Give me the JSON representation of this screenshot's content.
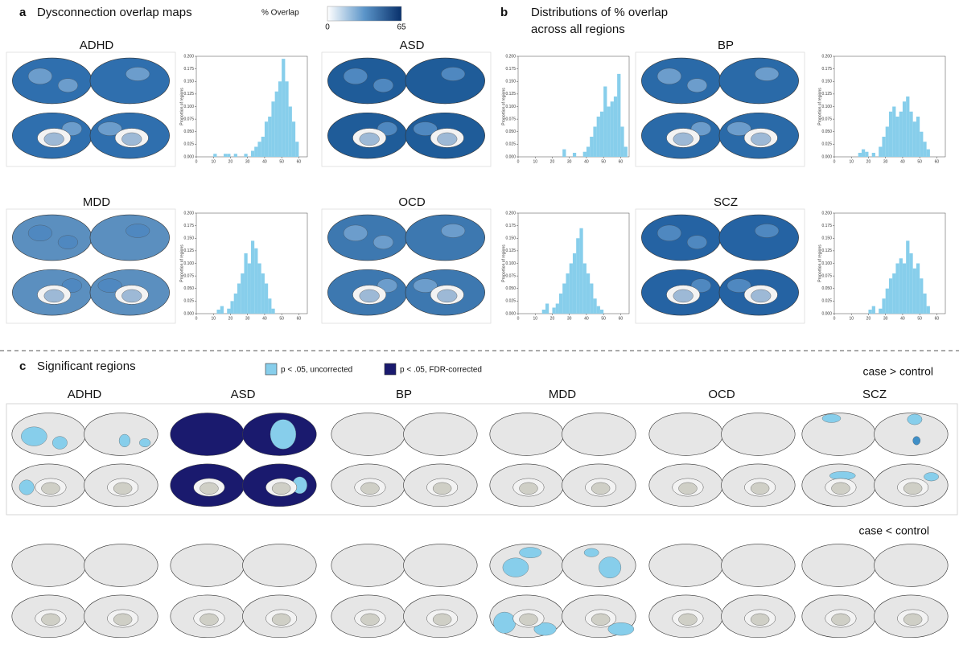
{
  "panel_a": {
    "letter": "a",
    "title": "Dysconnection overlap maps",
    "colorbar": {
      "label": "% Overlap",
      "min": 0,
      "max": 65
    },
    "maps": [
      "ADHD",
      "ASD",
      "BP",
      "MDD",
      "OCD",
      "SCZ"
    ]
  },
  "panel_b": {
    "letter": "b",
    "title_lines": [
      "Distributions of % overlap",
      "across all regions"
    ]
  },
  "chart_data": [
    {
      "type": "histogram",
      "y_label": "Proportion of regions",
      "color": "#87ceeb",
      "bins": [
        10,
        12,
        14,
        16,
        18,
        20,
        22,
        24,
        26,
        28,
        30,
        32,
        34,
        36,
        38,
        40,
        42,
        44,
        46,
        48,
        50,
        52,
        54,
        56,
        58,
        60,
        62,
        64
      ],
      "values": [
        0.006,
        0,
        0,
        0.006,
        0.006,
        0,
        0.006,
        0,
        0,
        0.006,
        0,
        0.012,
        0.02,
        0.03,
        0.04,
        0.07,
        0.08,
        0.11,
        0.13,
        0.15,
        0.195,
        0.15,
        0.1,
        0.07,
        0.03,
        0,
        0
      ],
      "xlim": [
        0,
        65
      ],
      "ylim": [
        0,
        0.2
      ],
      "xticks": [
        0,
        10,
        20,
        30,
        40,
        50,
        60
      ],
      "yticks": [
        {
          "value": 0,
          "label": "0.000"
        },
        {
          "value": 0.025,
          "label": "0.025"
        },
        {
          "value": 0.05,
          "label": "0.050"
        },
        {
          "value": 0.075,
          "label": "0.075"
        },
        {
          "value": 0.1,
          "label": "0.100"
        },
        {
          "value": 0.125,
          "label": "0.125"
        },
        {
          "value": 0.15,
          "label": "0.150"
        },
        {
          "value": 0.175,
          "label": "0.175"
        },
        {
          "value": 0.2,
          "label": "0.200"
        }
      ]
    },
    {
      "type": "histogram",
      "y_label": "Proportion of regions",
      "color": "#87ceeb",
      "bins": [
        10,
        12,
        14,
        16,
        18,
        20,
        22,
        24,
        26,
        28,
        30,
        32,
        34,
        36,
        38,
        40,
        42,
        44,
        46,
        48,
        50,
        52,
        54,
        56,
        58,
        60,
        62,
        64
      ],
      "values": [
        0,
        0,
        0,
        0,
        0,
        0,
        0,
        0,
        0.015,
        0,
        0,
        0.008,
        0,
        0,
        0.01,
        0.02,
        0.04,
        0.06,
        0.08,
        0.09,
        0.14,
        0.1,
        0.11,
        0.12,
        0.165,
        0.06,
        0.02
      ],
      "xlim": [
        0,
        65
      ],
      "ylim": [
        0,
        0.2
      ],
      "xticks": [
        0,
        10,
        20,
        30,
        40,
        50,
        60
      ],
      "yticks": [
        {
          "value": 0,
          "label": "0.000"
        },
        {
          "value": 0.025,
          "label": "0.025"
        },
        {
          "value": 0.05,
          "label": "0.050"
        },
        {
          "value": 0.075,
          "label": "0.075"
        },
        {
          "value": 0.1,
          "label": "0.100"
        },
        {
          "value": 0.125,
          "label": "0.125"
        },
        {
          "value": 0.15,
          "label": "0.150"
        },
        {
          "value": 0.175,
          "label": "0.175"
        },
        {
          "value": 0.2,
          "label": "0.200"
        }
      ]
    },
    {
      "type": "histogram",
      "y_label": "Proportion of regions",
      "color": "#87ceeb",
      "bins": [
        10,
        12,
        14,
        16,
        18,
        20,
        22,
        24,
        26,
        28,
        30,
        32,
        34,
        36,
        38,
        40,
        42,
        44,
        46,
        48,
        50,
        52,
        54,
        56,
        58,
        60,
        62,
        64
      ],
      "values": [
        0,
        0,
        0.008,
        0.015,
        0.01,
        0,
        0.008,
        0,
        0.02,
        0.04,
        0.06,
        0.09,
        0.1,
        0.08,
        0.09,
        0.11,
        0.12,
        0.09,
        0.07,
        0.08,
        0.05,
        0.03,
        0.015,
        0,
        0,
        0,
        0
      ],
      "xlim": [
        0,
        65
      ],
      "ylim": [
        0,
        0.2
      ],
      "xticks": [
        0,
        10,
        20,
        30,
        40,
        50,
        60
      ],
      "yticks": [
        {
          "value": 0,
          "label": "0.000"
        },
        {
          "value": 0.025,
          "label": "0.025"
        },
        {
          "value": 0.05,
          "label": "0.050"
        },
        {
          "value": 0.075,
          "label": "0.075"
        },
        {
          "value": 0.1,
          "label": "0.100"
        },
        {
          "value": 0.125,
          "label": "0.125"
        },
        {
          "value": 0.15,
          "label": "0.150"
        },
        {
          "value": 0.175,
          "label": "0.175"
        },
        {
          "value": 0.2,
          "label": "0.200"
        }
      ]
    },
    {
      "type": "histogram",
      "y_label": "Proportion of regions",
      "color": "#87ceeb",
      "bins": [
        10,
        12,
        14,
        16,
        18,
        20,
        22,
        24,
        26,
        28,
        30,
        32,
        34,
        36,
        38,
        40,
        42,
        44,
        46,
        48,
        50,
        52,
        54,
        56,
        58,
        60,
        62,
        64
      ],
      "values": [
        0,
        0.008,
        0.015,
        0,
        0.01,
        0.025,
        0.04,
        0.06,
        0.08,
        0.12,
        0.1,
        0.145,
        0.13,
        0.1,
        0.08,
        0.06,
        0.03,
        0.01,
        0,
        0,
        0,
        0,
        0,
        0,
        0,
        0,
        0
      ],
      "xlim": [
        0,
        65
      ],
      "ylim": [
        0,
        0.2
      ],
      "xticks": [
        0,
        10,
        20,
        30,
        40,
        50,
        60
      ],
      "yticks": [
        {
          "value": 0,
          "label": "0.000"
        },
        {
          "value": 0.025,
          "label": "0.025"
        },
        {
          "value": 0.05,
          "label": "0.050"
        },
        {
          "value": 0.075,
          "label": "0.075"
        },
        {
          "value": 0.1,
          "label": "0.100"
        },
        {
          "value": 0.125,
          "label": "0.125"
        },
        {
          "value": 0.15,
          "label": "0.150"
        },
        {
          "value": 0.175,
          "label": "0.175"
        },
        {
          "value": 0.2,
          "label": "0.200"
        }
      ]
    },
    {
      "type": "histogram",
      "y_label": "Proportion of regions",
      "color": "#87ceeb",
      "bins": [
        10,
        12,
        14,
        16,
        18,
        20,
        22,
        24,
        26,
        28,
        30,
        32,
        34,
        36,
        38,
        40,
        42,
        44,
        46,
        48,
        50,
        52,
        54,
        56,
        58,
        60,
        62,
        64
      ],
      "values": [
        0,
        0,
        0.008,
        0.02,
        0,
        0.012,
        0.02,
        0.04,
        0.06,
        0.08,
        0.1,
        0.12,
        0.15,
        0.17,
        0.1,
        0.08,
        0.06,
        0.03,
        0.015,
        0.008,
        0,
        0,
        0,
        0,
        0,
        0,
        0
      ],
      "xlim": [
        0,
        65
      ],
      "ylim": [
        0,
        0.2
      ],
      "xticks": [
        0,
        10,
        20,
        30,
        40,
        50,
        60
      ],
      "yticks": [
        {
          "value": 0,
          "label": "0.000"
        },
        {
          "value": 0.025,
          "label": "0.025"
        },
        {
          "value": 0.05,
          "label": "0.050"
        },
        {
          "value": 0.075,
          "label": "0.075"
        },
        {
          "value": 0.1,
          "label": "0.100"
        },
        {
          "value": 0.125,
          "label": "0.125"
        },
        {
          "value": 0.15,
          "label": "0.150"
        },
        {
          "value": 0.175,
          "label": "0.175"
        },
        {
          "value": 0.2,
          "label": "0.200"
        }
      ]
    },
    {
      "type": "histogram",
      "y_label": "Proportion of regions",
      "color": "#87ceeb",
      "bins": [
        10,
        12,
        14,
        16,
        18,
        20,
        22,
        24,
        26,
        28,
        30,
        32,
        34,
        36,
        38,
        40,
        42,
        44,
        46,
        48,
        50,
        52,
        54,
        56,
        58,
        60,
        62,
        64
      ],
      "values": [
        0,
        0,
        0,
        0,
        0,
        0.008,
        0.015,
        0,
        0.01,
        0.03,
        0.05,
        0.07,
        0.08,
        0.1,
        0.11,
        0.1,
        0.145,
        0.12,
        0.09,
        0.1,
        0.07,
        0.04,
        0.015,
        0,
        0,
        0,
        0
      ],
      "xlim": [
        0,
        65
      ],
      "ylim": [
        0,
        0.2
      ],
      "xticks": [
        0,
        10,
        20,
        30,
        40,
        50,
        60
      ],
      "yticks": [
        {
          "value": 0,
          "label": "0.000"
        },
        {
          "value": 0.025,
          "label": "0.025"
        },
        {
          "value": 0.05,
          "label": "0.050"
        },
        {
          "value": 0.075,
          "label": "0.075"
        },
        {
          "value": 0.1,
          "label": "0.100"
        },
        {
          "value": 0.125,
          "label": "0.125"
        },
        {
          "value": 0.15,
          "label": "0.150"
        },
        {
          "value": 0.175,
          "label": "0.175"
        },
        {
          "value": 0.2,
          "label": "0.200"
        }
      ]
    }
  ],
  "panel_c": {
    "letter": "c",
    "title": "Significant regions",
    "legend": [
      "p < .05, uncorrected",
      "p < .05, FDR-corrected"
    ],
    "rows": [
      "case > control",
      "case < control"
    ],
    "columns": [
      "ADHD",
      "ASD",
      "BP",
      "MDD",
      "OCD",
      "SCZ"
    ]
  }
}
